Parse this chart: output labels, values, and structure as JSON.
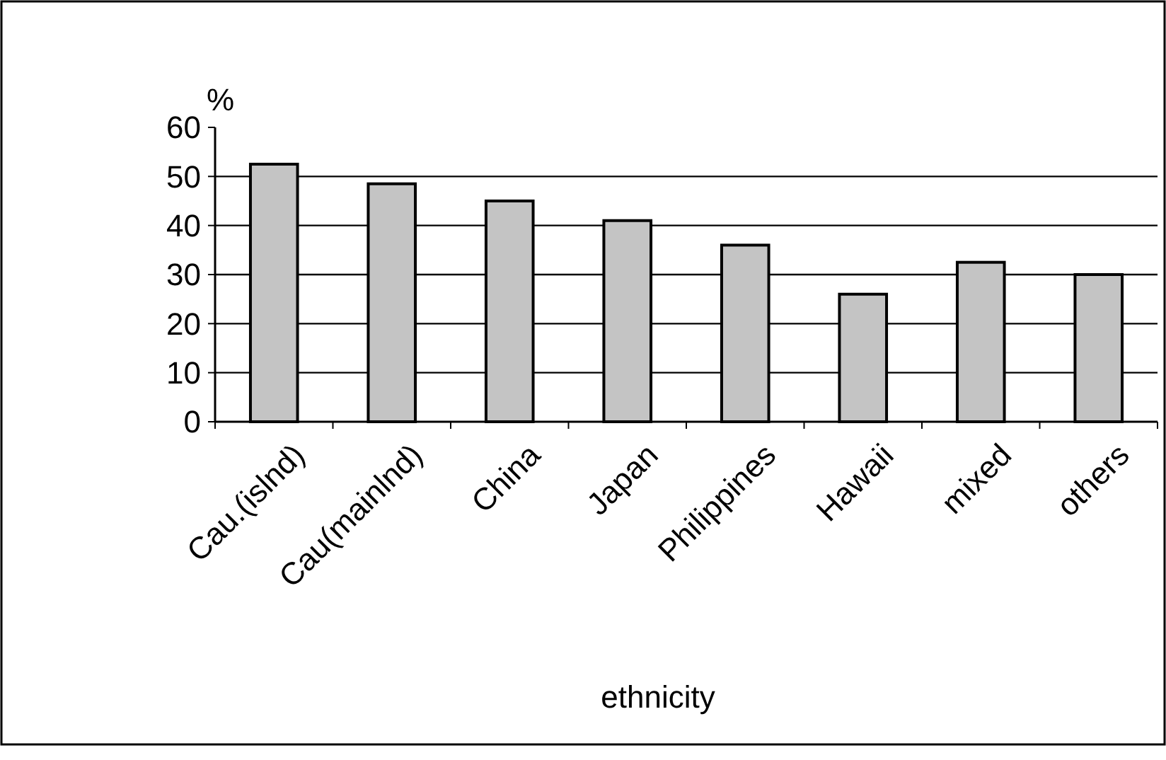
{
  "chart_data": {
    "type": "bar",
    "xlabel": "ethnicity",
    "ylabel": "%",
    "categories": [
      "Cau.(islnd)",
      "Cau(mainlnd)",
      "China",
      "Japan",
      "Philippines",
      "Hawaii",
      "mixed",
      "others"
    ],
    "values": [
      52.5,
      48.5,
      45,
      41,
      36,
      26,
      32.5,
      30
    ],
    "color": "#c4c4c4",
    "ylim": [
      0,
      60
    ],
    "yticks": [
      0,
      10,
      20,
      30,
      40,
      50,
      60
    ],
    "grid": "y"
  }
}
